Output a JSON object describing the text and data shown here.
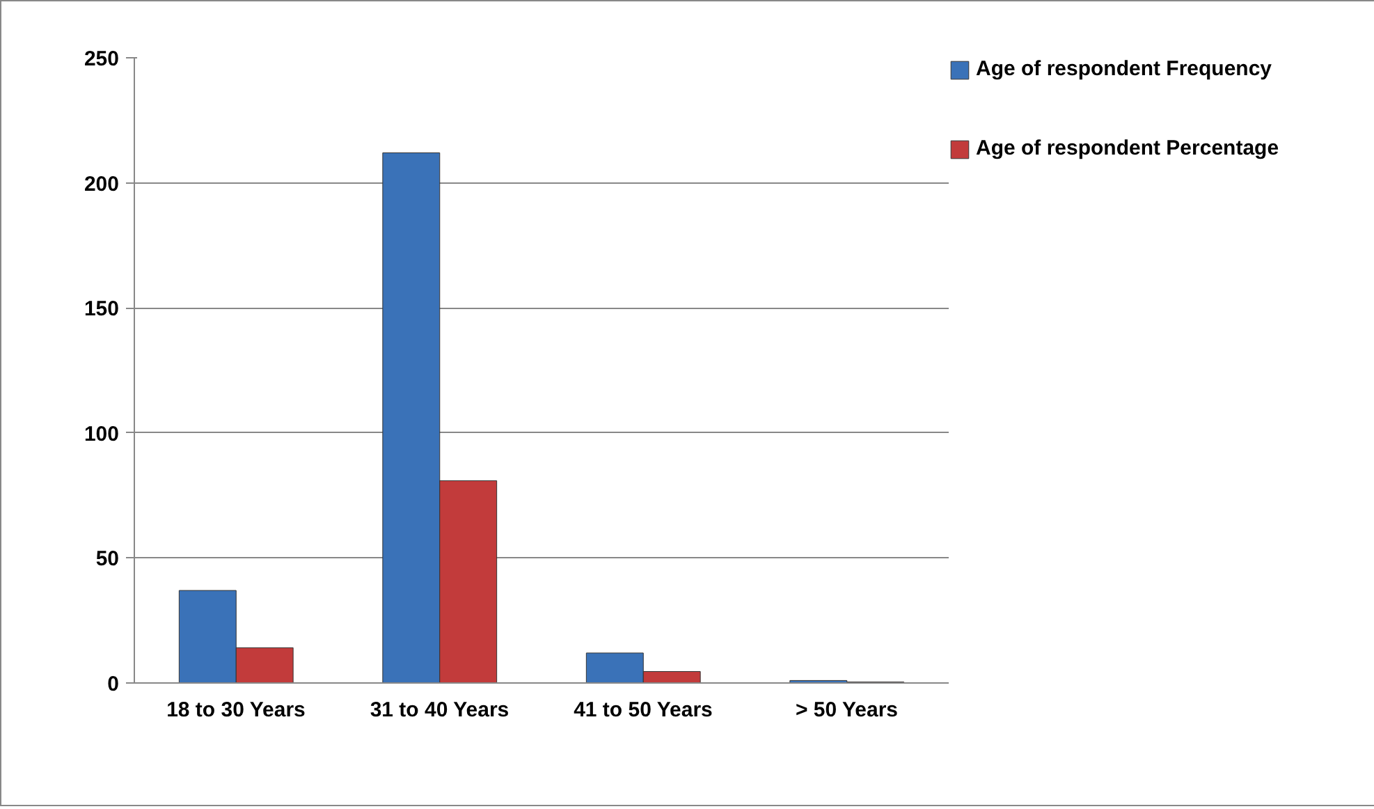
{
  "chart_data": {
    "type": "bar",
    "categories": [
      "18 to 30 Years",
      "31 to 40 Years",
      "41 to 50 Years",
      "> 50 Years"
    ],
    "series": [
      {
        "name": "Age of respondent Frequency",
        "color": "#3a72b8",
        "values": [
          37,
          212,
          12,
          1
        ]
      },
      {
        "name": "Age of respondent Percentage",
        "color": "#c23b3b",
        "values": [
          14.1,
          80.9,
          4.6,
          0.4
        ]
      }
    ],
    "ylim": [
      0,
      250
    ],
    "yticks": [
      0,
      50,
      100,
      150,
      200,
      250
    ],
    "grid": "y",
    "legend": "right"
  }
}
